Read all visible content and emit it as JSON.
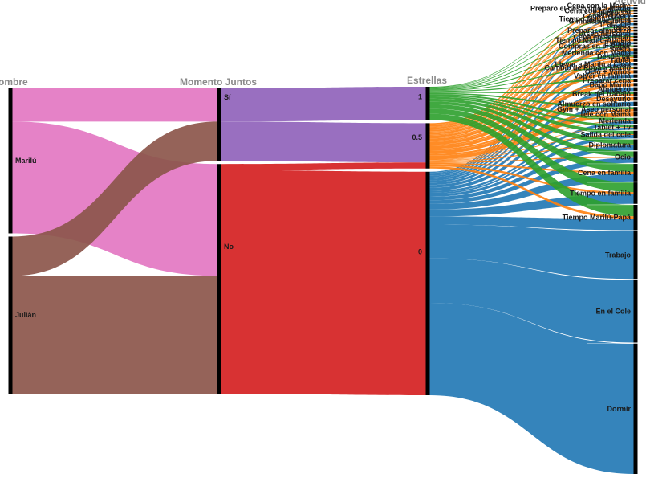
{
  "chart_data": {
    "type": "parallel-sets",
    "dimensions": [
      "Nombre",
      "Momento Juntos",
      "Estrellas",
      "Actividad"
    ],
    "dimension_headers": [
      "ombre",
      "Momento Juntos",
      "Estrellas",
      "Activid"
    ],
    "nodes": {
      "Nombre": [
        {
          "name": "Marilú",
          "value": 48
        },
        {
          "name": "Julián",
          "value": 52
        }
      ],
      "Momento Juntos": [
        {
          "name": "Sí",
          "value": 24
        },
        {
          "name": "No",
          "value": 76
        }
      ],
      "Estrellas": [
        {
          "name": "1",
          "value": 11
        },
        {
          "name": "0.5",
          "value": 15
        },
        {
          "name": "0",
          "value": 74
        }
      ],
      "Actividad": [
        {
          "name": "Cena con la Madre",
          "value": 0.3
        },
        {
          "name": "Preparo el desayuno a Marilú",
          "value": 0.3
        },
        {
          "name": "Cena con la Abuela",
          "value": 0.3
        },
        {
          "name": "Tablet + TV",
          "value": 0.3
        },
        {
          "name": "Cena Delivery",
          "value": 0.3
        },
        {
          "name": "Tiempo Marilú-Mamá",
          "value": 0.3
        },
        {
          "name": "Gimnasia artística",
          "value": 0.3
        },
        {
          "name": "Ir al Cole",
          "value": 0.4
        },
        {
          "name": "Tarea",
          "value": 0.4
        },
        {
          "name": "Preparar almuerzo",
          "value": 0.4
        },
        {
          "name": "Aseo personal",
          "value": 0.4
        },
        {
          "name": "Cena en soledad",
          "value": 0.4
        },
        {
          "name": "Tiempo Marilú-Abuela",
          "value": 0.4
        },
        {
          "name": "Estudio",
          "value": 0.4
        },
        {
          "name": "Compras en el Super",
          "value": 0.4
        },
        {
          "name": "Siesta",
          "value": 0.4
        },
        {
          "name": "Merienda con Mamá",
          "value": 0.5
        },
        {
          "name": "Despertar",
          "value": 0.5
        },
        {
          "name": "Tablet",
          "value": 0.5
        },
        {
          "name": "Llevar a Marilú a Casa",
          "value": 0.5
        },
        {
          "name": "Cambio de Ropa a Marilú",
          "value": 0.5
        },
        {
          "name": "Ocio + Varios",
          "value": 0.6
        },
        {
          "name": "Volver en familia",
          "value": 0.6
        },
        {
          "name": "Preparar cena",
          "value": 0.6
        },
        {
          "name": "Baño Marilú",
          "value": 0.6
        },
        {
          "name": "Almuerzo",
          "value": 0.7
        },
        {
          "name": "Break del trabajo",
          "value": 0.7
        },
        {
          "name": "Desayuno",
          "value": 0.7
        },
        {
          "name": "Almuerzo en solitario",
          "value": 0.8
        },
        {
          "name": "Gym + Aseo personal",
          "value": 0.8
        },
        {
          "name": "Tele con Mamá",
          "value": 0.8
        },
        {
          "name": "Merienda",
          "value": 1.1
        },
        {
          "name": "Tablet + Tv",
          "value": 0.9
        },
        {
          "name": "Salida del cole",
          "value": 1.4
        },
        {
          "name": "Diplomatura",
          "value": 2.0
        },
        {
          "name": "Ocio",
          "value": 2.1
        },
        {
          "name": "Cena en familia",
          "value": 3.2
        },
        {
          "name": "Tiempo en familia",
          "value": 3.9
        },
        {
          "name": "Tiempo Marilú-Papá",
          "value": 4.6
        },
        {
          "name": "Trabajo",
          "value": 8.7
        },
        {
          "name": "En el Cole",
          "value": 11.4
        },
        {
          "name": "Dormir",
          "value": 23.7
        }
      ]
    },
    "flows_nombre_momento": [
      {
        "from": "Marilú",
        "to": "Sí",
        "value": 11
      },
      {
        "from": "Marilú",
        "to": "No",
        "value": 37
      },
      {
        "from": "Julián",
        "to": "Sí",
        "value": 13
      },
      {
        "from": "Julián",
        "to": "No",
        "value": 39
      }
    ],
    "flows_momento_estrellas": [
      {
        "from": "Sí",
        "to": "1",
        "value": 11
      },
      {
        "from": "Sí",
        "to": "0.5",
        "value": 13
      },
      {
        "from": "No",
        "to": "0.5",
        "value": 2
      },
      {
        "from": "No",
        "to": "0",
        "value": 74
      }
    ],
    "colors": {
      "Marilú": "#e377c2",
      "Julián": "#8c564b",
      "Sí": "#9467bd",
      "No": "#d62728",
      "1": "#2ca02c",
      "0.5": "#ff7f0e",
      "0": "#1f77b4"
    }
  }
}
